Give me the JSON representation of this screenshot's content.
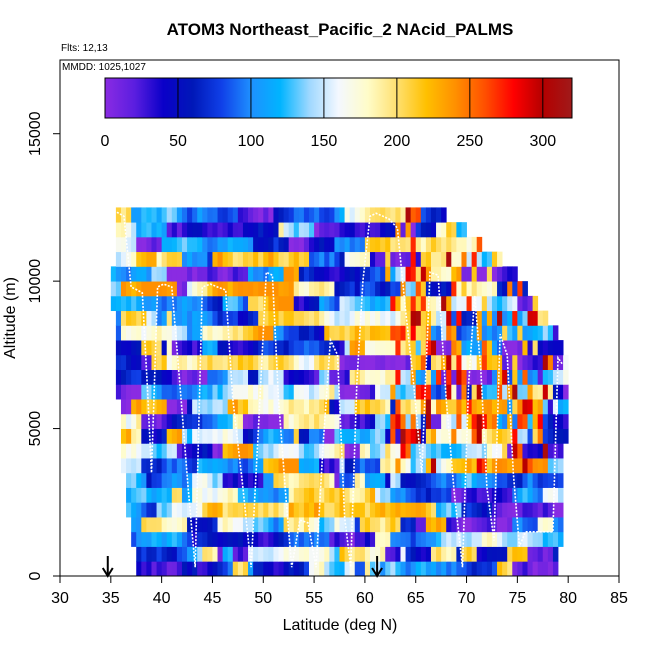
{
  "chart_data": {
    "type": "heatmap",
    "title": "ATOM3 Northeast_Pacific_2 NAcid_PALMS",
    "note_flights": "Flts: 12,13",
    "note_dates": "MMDD: 1025,1027",
    "xlabel": "Latitude (deg N)",
    "ylabel": "Altitude (m)",
    "xlim": [
      30,
      85
    ],
    "ylim": [
      0,
      17500
    ],
    "x_ticks": [
      "30",
      "35",
      "40",
      "45",
      "50",
      "55",
      "60",
      "65",
      "70",
      "75",
      "80",
      "85"
    ],
    "y_ticks": [
      "0",
      "5000",
      "10000",
      "15000"
    ],
    "colorbar": {
      "min": 0,
      "max": 320,
      "ticks": [
        "0",
        "50",
        "100",
        "150",
        "200",
        "250",
        "300"
      ],
      "colors": [
        "#8a2be2",
        "#5b1ee0",
        "#0a00c8",
        "#0018b8",
        "#1040e8",
        "#1e90ff",
        "#00b4ff",
        "#9fd8ff",
        "#f4f8ff",
        "#fffcc8",
        "#ffe070",
        "#ffc000",
        "#ff9000",
        "#ff5000",
        "#ff0000",
        "#b40000",
        "#a01a1a"
      ]
    },
    "grid": false,
    "bins": {
      "lat_start": 35,
      "lat_end": 80,
      "lat_step": 0.5,
      "alt_start": 0,
      "alt_step": 500,
      "rows": [
        {
          "alt": 0,
          "lat_min": 37.5,
          "lat_max": 79,
          "seed": 1
        },
        {
          "alt": 500,
          "lat_min": 37.5,
          "lat_max": 79,
          "seed": 2
        },
        {
          "alt": 1000,
          "lat_min": 37,
          "lat_max": 79.5,
          "seed": 3
        },
        {
          "alt": 1500,
          "lat_min": 37,
          "lat_max": 79.5,
          "seed": 4
        },
        {
          "alt": 2000,
          "lat_min": 36.5,
          "lat_max": 79.5,
          "seed": 5
        },
        {
          "alt": 2500,
          "lat_min": 36.5,
          "lat_max": 79.5,
          "seed": 6
        },
        {
          "alt": 3000,
          "lat_min": 36.5,
          "lat_max": 79.5,
          "seed": 7
        },
        {
          "alt": 3500,
          "lat_min": 36,
          "lat_max": 79.5,
          "seed": 8
        },
        {
          "alt": 4000,
          "lat_min": 36,
          "lat_max": 79.5,
          "seed": 9
        },
        {
          "alt": 4500,
          "lat_min": 36,
          "lat_max": 80,
          "seed": 10
        },
        {
          "alt": 5000,
          "lat_min": 36,
          "lat_max": 80,
          "seed": 11
        },
        {
          "alt": 5500,
          "lat_min": 36,
          "lat_max": 80,
          "seed": 12
        },
        {
          "alt": 6000,
          "lat_min": 35.5,
          "lat_max": 80,
          "seed": 13
        },
        {
          "alt": 6500,
          "lat_min": 35.5,
          "lat_max": 80,
          "seed": 14
        },
        {
          "alt": 7000,
          "lat_min": 35.5,
          "lat_max": 80,
          "seed": 15
        },
        {
          "alt": 7500,
          "lat_min": 35.5,
          "lat_max": 79.5,
          "seed": 16
        },
        {
          "alt": 8000,
          "lat_min": 35.5,
          "lat_max": 79,
          "seed": 17
        },
        {
          "alt": 8500,
          "lat_min": 35.5,
          "lat_max": 78,
          "seed": 18
        },
        {
          "alt": 9000,
          "lat_min": 35,
          "lat_max": 77,
          "seed": 19
        },
        {
          "alt": 9500,
          "lat_min": 35,
          "lat_max": 76,
          "seed": 20
        },
        {
          "alt": 10000,
          "lat_min": 35,
          "lat_max": 75,
          "seed": 21
        },
        {
          "alt": 10500,
          "lat_min": 35.5,
          "lat_max": 73.5,
          "seed": 22
        },
        {
          "alt": 11000,
          "lat_min": 35.5,
          "lat_max": 71.5,
          "seed": 23
        },
        {
          "alt": 11500,
          "lat_min": 35.5,
          "lat_max": 70,
          "seed": 24
        },
        {
          "alt": 12000,
          "lat_min": 35.5,
          "lat_max": 68,
          "seed": 25
        }
      ],
      "hot_zone": {
        "lat_min": 62,
        "lat_max": 78,
        "alt_min": 3500,
        "alt_max": 12500
      }
    },
    "flight_track": {
      "lat": [
        34.6,
        35.2,
        35.8,
        36.3,
        37.0,
        37.6,
        38.1,
        38.6,
        39.0,
        39.6,
        40.2,
        41.0,
        41.8,
        42.6,
        43.3,
        44.0,
        44.8,
        45.5,
        46.3,
        47.0,
        48.0,
        48.8,
        49.6,
        50.3,
        50.9,
        51.5,
        52.2,
        52.8,
        53.6,
        54.4,
        55.2,
        55.9,
        56.6,
        57.3,
        58.0,
        58.6,
        59.2,
        59.8,
        60.5,
        61.1,
        61.8,
        62.4,
        63.2,
        64.0,
        64.8,
        65.6,
        66.4,
        67.2,
        68.0,
        68.8,
        69.6,
        70.2,
        70.8,
        71.4,
        72.0,
        72.7,
        73.3,
        74.0,
        74.6,
        75.2,
        75.8,
        76.5,
        77.2,
        77.9,
        78.5,
        79.0,
        79.4
      ],
      "alt": [
        8400,
        12400,
        12300,
        12200,
        9800,
        9700,
        9600,
        6400,
        3500,
        9800,
        9900,
        9800,
        6500,
        3000,
        300,
        9800,
        9900,
        9800,
        9700,
        6000,
        3000,
        300,
        5500,
        10300,
        10200,
        6000,
        2800,
        300,
        1900,
        1800,
        300,
        4500,
        8000,
        7500,
        2000,
        300,
        6500,
        10000,
        12200,
        12300,
        12200,
        12100,
        11800,
        9000,
        6500,
        3500,
        10300,
        10200,
        6000,
        2800,
        300,
        6500,
        9500,
        7000,
        3000,
        1200,
        8200,
        7500,
        3500,
        1000,
        1500,
        1500,
        1500,
        1500,
        1500,
        7400,
        7200
      ]
    },
    "arrows": [
      {
        "lat": 34.7,
        "label": ""
      },
      {
        "lat": 61.2,
        "label": ""
      }
    ]
  }
}
